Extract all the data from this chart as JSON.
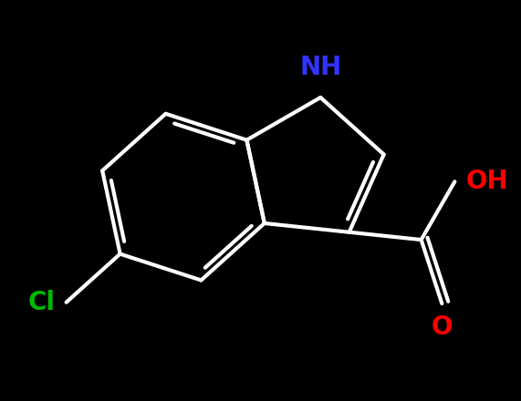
{
  "background_color": "#000000",
  "bond_color": "#ffffff",
  "bond_width": 3.0,
  "NH_label": "NH",
  "NH_color": "#3333ff",
  "NH_fontsize": 20,
  "OH_label": "OH",
  "OH_color": "#ff0000",
  "OH_fontsize": 20,
  "O_label": "O",
  "O_color": "#ff0000",
  "O_fontsize": 20,
  "Cl_label": "Cl",
  "Cl_color": "#00bb00",
  "Cl_fontsize": 20,
  "figsize": [
    5.71,
    4.4
  ],
  "dpi": 100
}
